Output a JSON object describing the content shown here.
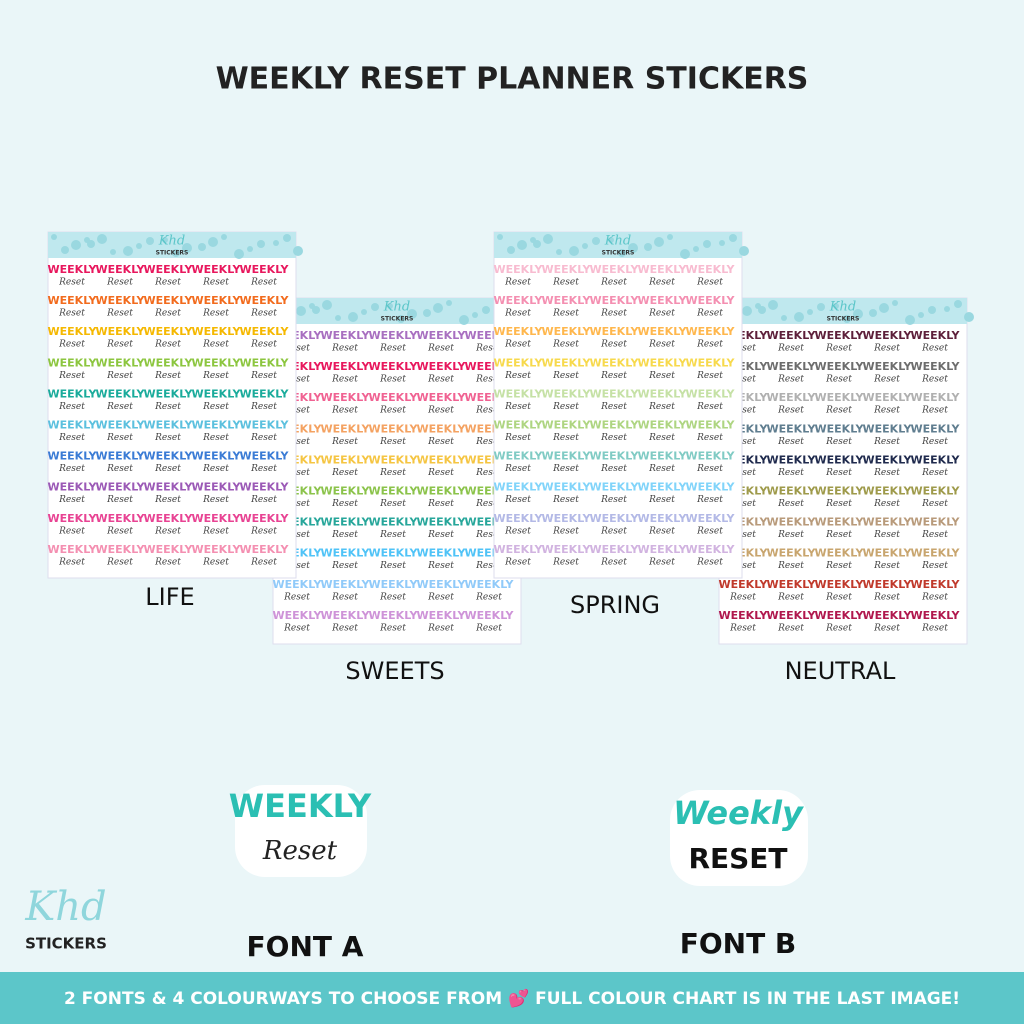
{
  "title": "WEEKLY RESET PLANNER STICKERS",
  "logo": {
    "brand": "Khd",
    "sub": "STICKERS"
  },
  "sticker": {
    "top": "WEEKLY",
    "bottom": "Reset"
  },
  "sheets": [
    {
      "name": "SWEETS",
      "colors": [
        "#a86fc0",
        "#e8175d",
        "#f06292",
        "#f4a261",
        "#f5c542",
        "#8bc34a",
        "#26a69a",
        "#4fc3f7",
        "#90caf9",
        "#ce93d8"
      ]
    },
    {
      "name": "NEUTRAL",
      "colors": [
        "#5d1f3a",
        "#6d6d6d",
        "#b0b0b0",
        "#5f7d8f",
        "#1f2a4d",
        "#9e9a4a",
        "#b89a7a",
        "#c8a56e",
        "#c0392b",
        "#b0174d"
      ]
    },
    {
      "name": "LIFE",
      "colors": [
        "#e8175d",
        "#f26b1d",
        "#f5b800",
        "#8cc63f",
        "#1aab9b",
        "#5bc0de",
        "#3a7bd5",
        "#9b59b6",
        "#e84393",
        "#f48fb1"
      ]
    },
    {
      "name": "SPRING",
      "colors": [
        "#f8bbd0",
        "#f48fb1",
        "#ffb74d",
        "#f7d94c",
        "#c5e1a5",
        "#aed581",
        "#80cbc4",
        "#81d4fa",
        "#b3b9e6",
        "#d1b3e0"
      ]
    }
  ],
  "fonts": [
    {
      "top": "WEEKLY",
      "bottom": "Reset",
      "label": "FONT A"
    },
    {
      "top": "Weekly",
      "bottom": "RESET",
      "label": "FONT B"
    }
  ],
  "banner": "2 FONTS & 4 COLOURWAYS TO CHOOSE FROM 💕 FULL COLOUR CHART IS IN THE LAST IMAGE!"
}
